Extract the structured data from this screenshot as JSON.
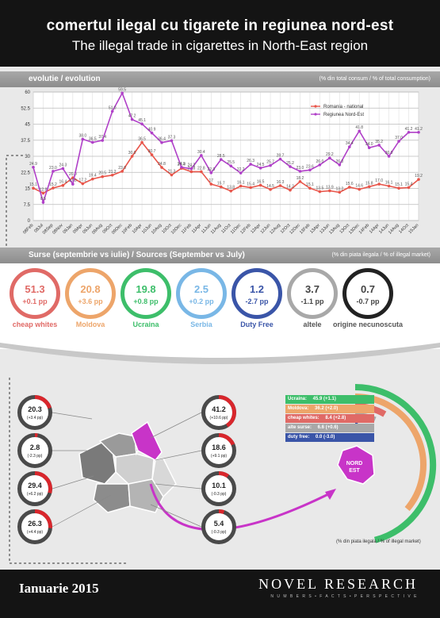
{
  "header": {
    "title_ro": "comertul ilegal cu tigarete in regiunea nord-est",
    "title_en": "The illegal trade in cigarettes in North-East region"
  },
  "evolution": {
    "bar_left": "evolutie / evolution",
    "bar_right": "(% din total consum / % of total consumption)"
  },
  "chart_data": {
    "type": "line",
    "x": [
      "08Feb",
      "08Jul",
      "08Sep",
      "08Nov",
      "09Jan",
      "09Apr",
      "09Jun",
      "09Aug",
      "09Oct",
      "09Dec",
      "10Feb",
      "10Apr",
      "10Jun",
      "10Aug",
      "10Oct",
      "10Dec",
      "11Feb",
      "11Apr",
      "11Jun",
      "11Aug",
      "11Oct",
      "11Dec",
      "12Feb",
      "12Apr",
      "12Jun",
      "12Aug",
      "12Oct",
      "12Dec",
      "13Feb",
      "13Apr",
      "13Jun",
      "13Aug",
      "13Oct",
      "13Dec",
      "14Feb",
      "14Apr",
      "14Jun",
      "14Aug",
      "14Oct",
      "15Jan"
    ],
    "x_tick_labels": [
      "08Feb",
      "08Jul",
      "08Sep",
      "08Nov",
      "09Jan",
      "09Apr",
      "09Jun",
      "09Aug",
      "09Oct",
      "09Dec",
      "10Feb",
      "10Apr",
      "10Jun",
      "10Aug",
      "10Oct",
      "10Dec",
      "11Feb",
      "11Apr",
      "11Jun",
      "11Aug",
      "11Oct",
      "11Dec",
      "12Feb",
      "12Apr",
      "12Jun",
      "12Aug",
      "12Oct",
      "12Dec",
      "13Feb",
      "13Apr",
      "13Jun",
      "13Aug",
      "13Oct",
      "13Dec",
      "14Feb",
      "14Apr",
      "14Jun",
      "14Aug",
      "14Oct",
      "15Jan"
    ],
    "series": [
      {
        "name": "Romania - national",
        "color": "#e8554a",
        "values": [
          15.1,
          12.8,
          15.2,
          16.4,
          20.0,
          17.2,
          19.4,
          20.5,
          21.2,
          23.0,
          30.0,
          36.5,
          30.7,
          24.8,
          21.3,
          24.4,
          22.8,
          22.8,
          17.0,
          15.7,
          13.8,
          16.1,
          15.4,
          16.5,
          14.5,
          16.3,
          14.2,
          18.2,
          15.1,
          13.5,
          13.9,
          13.2,
          15.6,
          14.6,
          15.8,
          17.0,
          16.1,
          15.1,
          15.4,
          19.2
        ]
      },
      {
        "name": "Regiunea Nord-Est",
        "color": "#b040c8",
        "values": [
          24.9,
          8.5,
          23.0,
          24.3,
          17.0,
          38.0,
          36.5,
          37.4,
          51.0,
          59.5,
          47.2,
          45.1,
          40.9,
          36.4,
          37.3,
          24.9,
          24.2,
          30.4,
          22.3,
          28.5,
          25.5,
          22.2,
          26.3,
          24.5,
          25.7,
          28.7,
          25.2,
          23.0,
          23.6,
          26.0,
          29.2,
          26.0,
          34.4,
          41.8,
          34.0,
          35.2,
          30.0,
          37.0,
          41.2,
          41.2
        ]
      }
    ],
    "point_labels": {
      "Romania - national": [
        "15.1",
        "12.8",
        "15.2",
        "16.4",
        "20.0",
        "17.2",
        "19.4",
        "20.5",
        "21.2",
        "23.0",
        "30.0",
        "36.5",
        "30.7",
        "24.8",
        "21.3",
        "24.4",
        "22.8",
        "22.8",
        "17",
        "15.7",
        "13.8",
        "16.1",
        "15.4",
        "16.5",
        "14.5",
        "16.3",
        "14.2",
        "18.2",
        "15.1",
        "13.5",
        "13.9",
        "13.2",
        "15.6",
        "14.6",
        "15.8",
        "17.0",
        "16.1",
        "15.1",
        "15.4",
        "19.2"
      ],
      "Regiunea Nord-Est": [
        "24.9",
        "8.5",
        "23.0",
        "24.3",
        "17.0",
        "38.0",
        "36.5",
        "37.4",
        "51.0",
        "59.5",
        "47.2",
        "45.1",
        "40.9",
        "36.4",
        "37.3",
        "24.9",
        "24.2",
        "30.4",
        "22.3",
        "28.5",
        "25.5",
        "22.2",
        "26.3",
        "24.5",
        "25.7",
        "28.7",
        "25.2",
        "23.0",
        "23.6",
        "26.0",
        "29.2",
        "26.0",
        "34.4",
        "41.8",
        "34.0",
        "35.2",
        "30.0",
        "37.0",
        "41.2",
        "41.2"
      ]
    },
    "y_ticks": [
      "0",
      "7.5",
      "15",
      "22.5",
      "30",
      "37.5",
      "45",
      "52.5",
      "60"
    ],
    "ylim": [
      0,
      60
    ],
    "grid": true,
    "legend_position": "top-right"
  },
  "sources": {
    "bar_left": "Surse (septembrie vs iulie) / Sources (September vs July)",
    "bar_right": "(% din piata ilegala / % of illegal market)",
    "items": [
      {
        "value": "51.3",
        "delta": "+0.1 pp",
        "label": "cheap whites",
        "color": "#e06a66"
      },
      {
        "value": "20.8",
        "delta": "+3.6 pp",
        "label": "Moldova",
        "color": "#eda56a"
      },
      {
        "value": "19.8",
        "delta": "+0.8 pp",
        "label": "Ucraina",
        "color": "#3dbe6a"
      },
      {
        "value": "2.5",
        "delta": "+0.2 pp",
        "label": "Serbia",
        "color": "#79b7e6"
      },
      {
        "value": "1.2",
        "delta": "-2.7 pp",
        "label": "Duty Free",
        "color": "#3a55a8"
      },
      {
        "value": "3.7",
        "delta": "-1.1 pp",
        "label": "altele",
        "color": "#a8a8a8"
      },
      {
        "value": "0.7",
        "delta": "-0.7 pp",
        "label": "origine necunoscuta",
        "color": "#222222"
      }
    ]
  },
  "map": {
    "left_rings": [
      {
        "value": "20.3",
        "delta": "(+3.4 pp)"
      },
      {
        "value": "2.8",
        "delta": "(-2.3 pp)"
      },
      {
        "value": "29.4",
        "delta": "(+6.2 pp)"
      },
      {
        "value": "26.3",
        "delta": "(+4.4 pp)"
      }
    ],
    "right_rings": [
      {
        "value": "41.2",
        "delta": "(+10.6 pp)"
      },
      {
        "value": "18.6",
        "delta": "(+9.1 pp)"
      },
      {
        "value": "10.1",
        "delta": "(-0.3 pp)"
      },
      {
        "value": "5.4",
        "delta": "(-0.3 pp)"
      }
    ],
    "ring_fractions_left": [
      0.203,
      0.028,
      0.294,
      0.263
    ],
    "ring_fractions_right": [
      0.412,
      0.186,
      0.101,
      0.054
    ],
    "region_label_1": "NORD",
    "region_label_2": "EST",
    "region_sources": [
      {
        "label": "Ucraina:",
        "value": "45.9 (+1.1)",
        "color": "#3dbe6a"
      },
      {
        "label": "Moldova:",
        "value": "36.2 (+2.0)",
        "color": "#eda56a"
      },
      {
        "label": "cheap whites:",
        "value": "8.4 (+2.8)",
        "color": "#e06a66"
      },
      {
        "label": "alte surse:",
        "value": "6.6 (+0.6)",
        "color": "#a8a8a8"
      },
      {
        "label": "duty free:",
        "value": "0.0 (-3.0)",
        "color": "#3a55a8"
      }
    ],
    "note": "(% din piata ilegala / % of illegal market)"
  },
  "footer": {
    "date": "Ianuarie 2015",
    "brand": "NOVEL RESEARCH",
    "tagline": "N U M B E R S • F A C T S • P E R S P E C T I V E"
  }
}
